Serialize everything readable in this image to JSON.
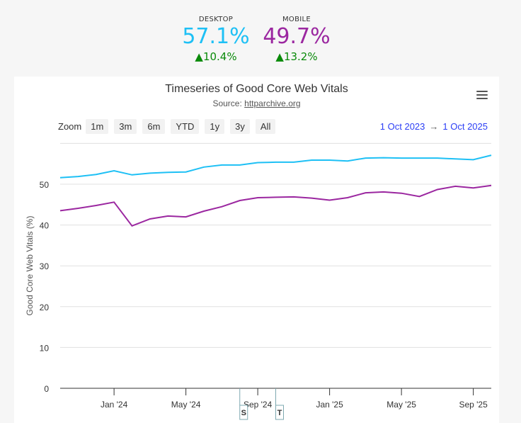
{
  "kpis": [
    {
      "label": "DESKTOP",
      "value": "57.1%",
      "change": "▲10.4%",
      "color": "#1ec0f5"
    },
    {
      "label": "MOBILE",
      "value": "49.7%",
      "change": "▲13.2%",
      "color": "#9b27a0"
    }
  ],
  "toolbar": {
    "zoom_label": "Zoom",
    "buttons": [
      "1m",
      "3m",
      "6m",
      "YTD",
      "1y",
      "3y",
      "All"
    ],
    "range_from": "1 Oct 2023",
    "range_arrow": "→",
    "range_to": "1 Oct 2025",
    "menu_icon": "hamburger-icon"
  },
  "chart_data": {
    "type": "line",
    "title": "Timeseries of Good Core Web Vitals",
    "subtitle_prefix": "Source: ",
    "subtitle_link": "httparchive.org",
    "ylabel": "Good Core Web Vitals (%)",
    "ylim": [
      0,
      60
    ],
    "yticks": [
      0,
      10,
      20,
      30,
      40,
      50
    ],
    "xticks": [
      "Jan '24",
      "May '24",
      "Sep '24",
      "Jan '25",
      "May '25",
      "Sep '25"
    ],
    "grid": true,
    "x": [
      "2023-10",
      "2023-11",
      "2023-12",
      "2024-01",
      "2024-02",
      "2024-03",
      "2024-04",
      "2024-05",
      "2024-06",
      "2024-07",
      "2024-08",
      "2024-09",
      "2024-10",
      "2024-11",
      "2024-12",
      "2025-01",
      "2025-02",
      "2025-03",
      "2025-04",
      "2025-05",
      "2025-06",
      "2025-07",
      "2025-08",
      "2025-09",
      "2025-10"
    ],
    "series": [
      {
        "key": "desktop",
        "color": "#1ec0f5",
        "values": [
          51.6,
          51.9,
          52.4,
          53.3,
          52.3,
          52.7,
          52.9,
          53.0,
          54.2,
          54.7,
          54.7,
          55.3,
          55.4,
          55.4,
          55.9,
          55.9,
          55.7,
          56.4,
          56.5,
          56.4,
          56.4,
          56.4,
          56.2,
          56.0,
          57.1
        ]
      },
      {
        "key": "mobile",
        "color": "#9b27a0",
        "values": [
          43.5,
          44.1,
          44.8,
          45.6,
          39.8,
          41.5,
          42.2,
          42.0,
          43.4,
          44.5,
          46.0,
          46.7,
          46.8,
          46.9,
          46.6,
          46.1,
          46.7,
          47.9,
          48.1,
          47.8,
          47.0,
          48.7,
          49.5,
          49.1,
          49.7
        ]
      }
    ],
    "flags": [
      {
        "x": "2024-08",
        "label": "S"
      },
      {
        "x": "2024-10",
        "label": "T"
      }
    ]
  }
}
